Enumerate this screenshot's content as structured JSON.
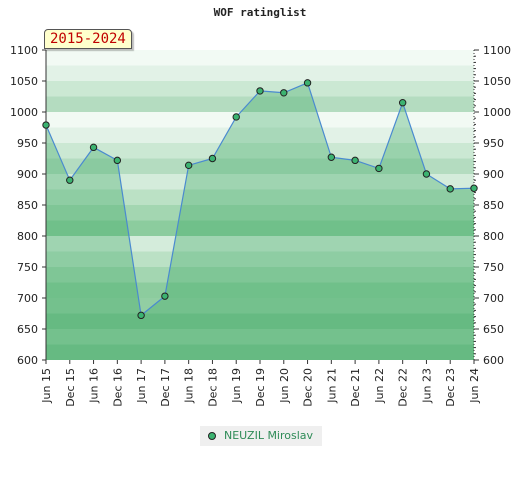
{
  "chart_data": {
    "type": "area",
    "title": "WOF ratinglist",
    "period_label": "2015-2024",
    "categories": [
      "Jun 15",
      "Dec 15",
      "Jun 16",
      "Dec 16",
      "Jun 17",
      "Dec 17",
      "Jun 18",
      "Dec 18",
      "Jun 19",
      "Dec 19",
      "Jun 20",
      "Dec 20",
      "Jun 21",
      "Dec 21",
      "Jun 22",
      "Dec 22",
      "Jun 23",
      "Dec 23",
      "Jun 24"
    ],
    "series": [
      {
        "name": "NEUZIL Miroslav",
        "values": [
          979,
          890,
          943,
          922,
          672,
          703,
          914,
          925,
          992,
          1034,
          1031,
          1047,
          927,
          922,
          909,
          1015,
          900,
          876,
          877
        ]
      }
    ],
    "ylim": [
      600,
      1100
    ],
    "yticks": [
      600,
      650,
      700,
      750,
      800,
      850,
      900,
      950,
      1000,
      1050,
      1100
    ],
    "grid": true,
    "legend_position": "bottom-center",
    "colors": {
      "line": "#4a8ad0",
      "marker": "#3cb371",
      "band_900_1100": [
        "#b4dcc0",
        "#cbe8d3",
        "#e2f2e7",
        "#f2faf4"
      ],
      "band_700_900": [
        "#8ccc9e",
        "#a3d6b1",
        "#bbe1c5",
        "#d4ecdb"
      ],
      "band_600_700": [
        "#7dc492",
        "#92cea3"
      ]
    }
  }
}
